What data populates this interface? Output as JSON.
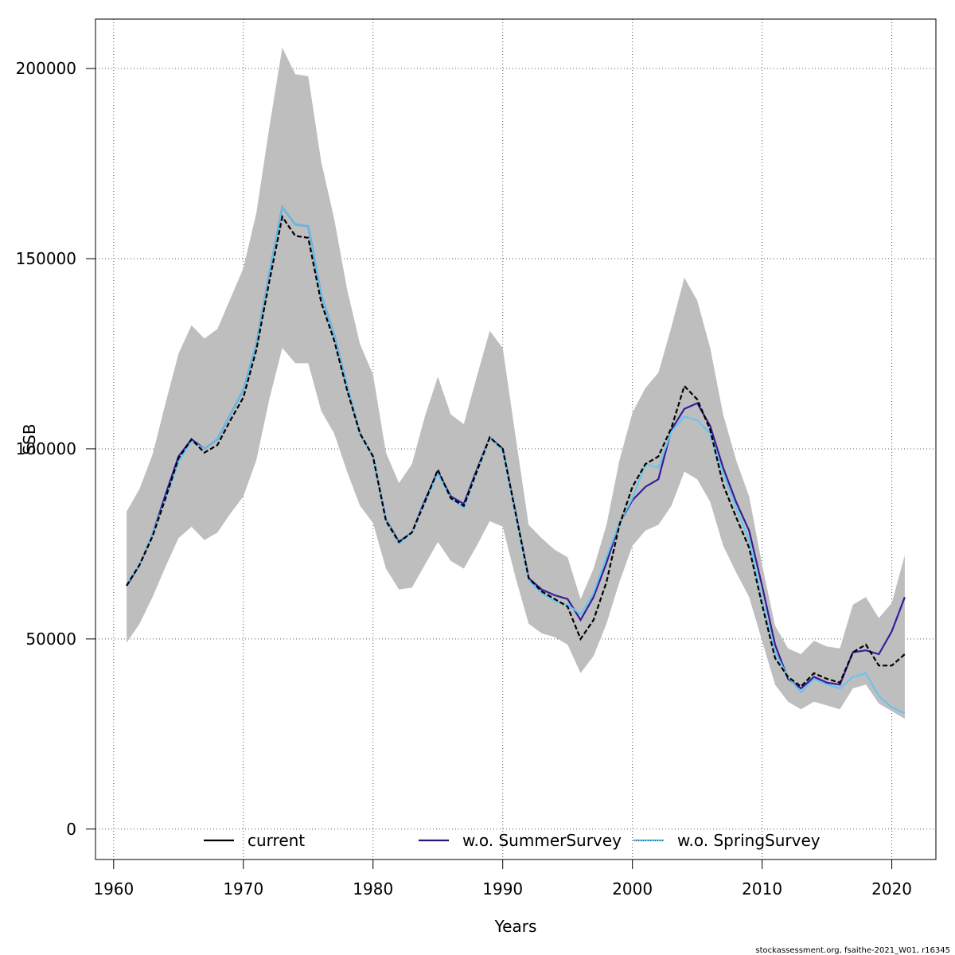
{
  "chart_data": {
    "type": "line",
    "title": "",
    "xlabel": "Years",
    "ylabel": "SSB",
    "xlim": [
      1958.6,
      2023.4
    ],
    "ylim": [
      -8000,
      213000
    ],
    "xticks": [
      1960,
      1970,
      1980,
      1990,
      2000,
      2010,
      2020
    ],
    "yticks": [
      0,
      50000,
      100000,
      150000,
      200000
    ],
    "grid": true,
    "legend_placement": "bottom",
    "x": [
      1961,
      1962,
      1963,
      1964,
      1965,
      1966,
      1967,
      1968,
      1969,
      1970,
      1971,
      1972,
      1973,
      1974,
      1975,
      1976,
      1977,
      1978,
      1979,
      1980,
      1981,
      1982,
      1983,
      1984,
      1985,
      1986,
      1987,
      1988,
      1989,
      1990,
      1991,
      1992,
      1993,
      1994,
      1995,
      1996,
      1997,
      1998,
      1999,
      2000,
      2001,
      2002,
      2003,
      2004,
      2005,
      2006,
      2007,
      2008,
      2009,
      2010,
      2011,
      2012,
      2013,
      2014,
      2015,
      2016,
      2017,
      2018,
      2019,
      2020,
      2021
    ],
    "band": {
      "color": "#bebebe",
      "lower": [
        49000,
        54000,
        61000,
        69000,
        76500,
        79500,
        76000,
        78000,
        83000,
        87500,
        97000,
        113000,
        126500,
        122500,
        122500,
        110000,
        104000,
        94000,
        85000,
        80500,
        68500,
        63000,
        63500,
        69500,
        75500,
        70500,
        68500,
        74500,
        81000,
        79500,
        66000,
        54000,
        51500,
        50500,
        48500,
        41000,
        45500,
        54000,
        65000,
        74500,
        78500,
        80000,
        85000,
        94000,
        92000,
        86000,
        74500,
        67500,
        61000,
        49500,
        38000,
        33500,
        31500,
        33500,
        32500,
        31500,
        37000,
        38000,
        33000,
        31000,
        29000
      ],
      "upper": [
        83500,
        89500,
        98500,
        112000,
        125000,
        132500,
        129000,
        131500,
        139500,
        147500,
        162000,
        184500,
        205500,
        198500,
        198000,
        175500,
        160500,
        142000,
        127500,
        119500,
        99000,
        91000,
        96000,
        108500,
        119000,
        109000,
        106500,
        119000,
        131000,
        126500,
        103000,
        80000,
        76500,
        73500,
        71500,
        60500,
        68500,
        80000,
        97000,
        109500,
        116000,
        120000,
        132000,
        145000,
        139000,
        126500,
        109000,
        97000,
        87500,
        69500,
        53500,
        47500,
        46000,
        49500,
        48000,
        47500,
        59000,
        61000,
        55500,
        59500,
        72000
      ]
    },
    "series": [
      {
        "name": "current",
        "color": "#000000",
        "style": "solid",
        "values": [
          64000,
          69500,
          77000,
          87000,
          97500,
          102500,
          99000,
          101000,
          107500,
          113500,
          126000,
          144000,
          161000,
          156000,
          155500,
          138500,
          128500,
          115500,
          104000,
          98000,
          81000,
          75500,
          78000,
          86000,
          94500,
          87000,
          85000,
          94000,
          103000,
          100000,
          83000,
          66000,
          62500,
          60500,
          58500,
          50000,
          55000,
          65000,
          80000,
          90000,
          96000,
          98000,
          105500,
          116500,
          113000,
          105000,
          90500,
          82000,
          74000,
          59000,
          45000,
          40000,
          37500,
          41000,
          39500,
          38500,
          46500,
          48500,
          43000,
          43000,
          46000
        ]
      },
      {
        "name": "w.o. SummerSurvey",
        "color": "#3a1a9a",
        "style": "solid",
        "values": [
          64000,
          69500,
          77500,
          88000,
          98000,
          102500,
          100000,
          102500,
          109000,
          115500,
          127500,
          146000,
          163500,
          159000,
          158500,
          140500,
          130000,
          116500,
          104000,
          98000,
          81500,
          75500,
          78000,
          86500,
          94000,
          87500,
          85500,
          94500,
          103000,
          100000,
          83000,
          66000,
          63000,
          61500,
          60500,
          55000,
          61000,
          70000,
          80500,
          86500,
          90000,
          92000,
          105000,
          110500,
          112000,
          106000,
          95000,
          86000,
          78500,
          64000,
          48500,
          39500,
          37000,
          40000,
          38500,
          38000,
          46500,
          47000,
          46000,
          52000,
          61000
        ]
      },
      {
        "name": "w.o. SpringSurvey",
        "color": "#5ec7f0",
        "style": "dotted",
        "values": [
          64500,
          69500,
          77500,
          87000,
          96500,
          102000,
          100000,
          102500,
          109000,
          115500,
          127500,
          146000,
          163500,
          159000,
          158500,
          140500,
          130000,
          116500,
          104000,
          98000,
          81500,
          75000,
          78000,
          86000,
          93500,
          87000,
          84500,
          94000,
          103000,
          99500,
          82500,
          65500,
          62000,
          60000,
          59000,
          56500,
          62000,
          71500,
          80500,
          87000,
          96000,
          95000,
          104500,
          108500,
          107500,
          104000,
          93500,
          84500,
          76000,
          60000,
          46500,
          40000,
          36000,
          39500,
          38000,
          37000,
          40000,
          41000,
          35000,
          32000,
          30500
        ]
      }
    ],
    "legend": [
      "current",
      "w.o. SummerSurvey",
      "w.o. SpringSurvey"
    ]
  },
  "footer": "stockassessment.org, fsaithe-2021_W01, r16345"
}
